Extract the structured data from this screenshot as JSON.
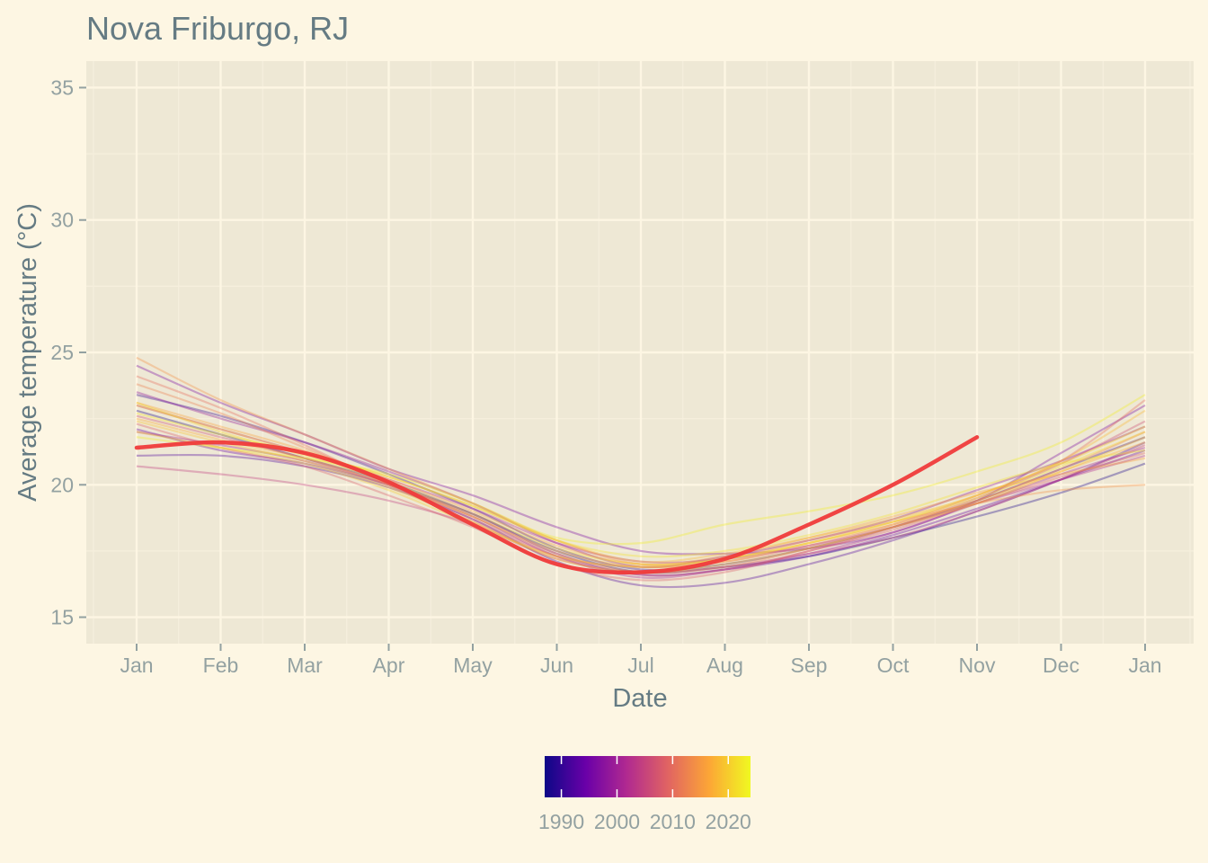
{
  "chart_data": {
    "type": "line",
    "title": "Nova Friburgo, RJ",
    "xlabel": "Date",
    "ylabel": "Average temperature (°C)",
    "ylim": [
      14,
      36
    ],
    "y_ticks": [
      15,
      20,
      25,
      30,
      35
    ],
    "x_ticks": [
      "Jan",
      "Feb",
      "Mar",
      "Apr",
      "May",
      "Jun",
      "Jul",
      "Aug",
      "Sep",
      "Oct",
      "Nov",
      "Dec",
      "Jan"
    ],
    "grid": true,
    "legend": {
      "type": "colorbar",
      "placement": "bottom",
      "ticks": [
        1990,
        2000,
        2010,
        2020
      ],
      "range": [
        1987,
        2024
      ],
      "colors": [
        "#0d0887",
        "#6a00a8",
        "#b12a90",
        "#e16462",
        "#fca636",
        "#f0f921"
      ]
    },
    "highlight_color": "#ef3b3b",
    "x_points": [
      "Jan",
      "Feb",
      "Mar",
      "Apr",
      "May",
      "Jun",
      "Jul",
      "Aug",
      "Sep",
      "Oct",
      "Nov",
      "Dec",
      "Jan"
    ],
    "series": [
      {
        "year": 1988,
        "values": [
          22.8,
          21.9,
          21.0,
          20.1,
          18.9,
          17.5,
          16.7,
          16.9,
          17.3,
          18.0,
          18.8,
          19.7,
          20.8
        ],
        "highlight": false
      },
      {
        "year": 1990,
        "values": [
          23.4,
          22.6,
          21.6,
          20.4,
          19.1,
          17.6,
          16.8,
          17.0,
          17.6,
          18.4,
          19.4,
          20.6,
          21.8
        ],
        "highlight": false
      },
      {
        "year": 1992,
        "values": [
          21.1,
          21.1,
          20.7,
          19.9,
          18.7,
          17.1,
          16.2,
          16.3,
          17.0,
          17.9,
          19.0,
          20.2,
          21.6
        ],
        "highlight": false
      },
      {
        "year": 1994,
        "values": [
          22.1,
          21.3,
          20.8,
          20.0,
          18.9,
          17.4,
          16.6,
          16.8,
          17.3,
          18.1,
          19.1,
          20.2,
          21.3
        ],
        "highlight": false
      },
      {
        "year": 1996,
        "values": [
          24.5,
          23.1,
          21.9,
          20.6,
          19.6,
          18.4,
          17.5,
          17.4,
          17.6,
          18.2,
          19.4,
          21.2,
          23.0
        ],
        "highlight": false
      },
      {
        "year": 1998,
        "values": [
          23.5,
          22.5,
          21.6,
          20.5,
          19.3,
          17.8,
          16.9,
          17.3,
          17.9,
          18.7,
          19.8,
          20.9,
          22.2
        ],
        "highlight": false
      },
      {
        "year": 2000,
        "values": [
          22.0,
          21.5,
          20.9,
          20.0,
          18.8,
          17.3,
          16.5,
          16.8,
          17.4,
          18.2,
          19.3,
          20.4,
          21.4
        ],
        "highlight": false
      },
      {
        "year": 2002,
        "values": [
          23.0,
          22.1,
          21.2,
          20.2,
          19.1,
          17.8,
          17.1,
          17.2,
          17.7,
          18.4,
          19.3,
          20.2,
          21.1
        ],
        "highlight": false
      },
      {
        "year": 2004,
        "values": [
          20.7,
          20.4,
          20.0,
          19.4,
          18.5,
          17.2,
          16.7,
          16.9,
          17.4,
          18.0,
          19.0,
          20.2,
          21.5
        ],
        "highlight": false
      },
      {
        "year": 2006,
        "values": [
          22.6,
          21.8,
          21.0,
          20.0,
          18.7,
          17.3,
          16.6,
          16.8,
          17.5,
          18.4,
          19.5,
          20.8,
          22.4
        ],
        "highlight": false
      },
      {
        "year": 2008,
        "values": [
          22.3,
          21.4,
          20.7,
          19.6,
          18.4,
          17.0,
          16.4,
          16.7,
          17.5,
          18.3,
          19.3,
          20.3,
          21.2
        ],
        "highlight": false
      },
      {
        "year": 2010,
        "values": [
          24.1,
          22.9,
          21.5,
          20.0,
          18.6,
          17.3,
          16.9,
          17.1,
          17.7,
          18.5,
          19.6,
          20.9,
          23.2
        ],
        "highlight": false
      },
      {
        "year": 2012,
        "values": [
          23.8,
          22.7,
          21.4,
          20.1,
          18.8,
          17.4,
          16.7,
          16.9,
          17.6,
          18.4,
          19.4,
          20.6,
          22.0
        ],
        "highlight": false
      },
      {
        "year": 2014,
        "values": [
          24.8,
          23.2,
          21.9,
          20.6,
          19.3,
          17.9,
          17.0,
          17.2,
          17.9,
          18.6,
          19.3,
          19.8,
          20.0
        ],
        "highlight": false
      },
      {
        "year": 2016,
        "values": [
          23.1,
          22.2,
          21.3,
          20.2,
          19.0,
          17.7,
          17.0,
          17.3,
          18.0,
          18.8,
          19.7,
          20.4,
          21.0
        ],
        "highlight": false
      },
      {
        "year": 2017,
        "values": [
          22.5,
          21.7,
          21.0,
          20.0,
          18.8,
          17.5,
          16.9,
          17.1,
          17.8,
          18.5,
          19.4,
          20.5,
          21.6
        ],
        "highlight": false
      },
      {
        "year": 2018,
        "values": [
          23.0,
          22.1,
          21.2,
          20.3,
          19.2,
          17.9,
          17.1,
          17.4,
          18.0,
          18.7,
          19.6,
          20.9,
          22.8
        ],
        "highlight": false
      },
      {
        "year": 2019,
        "values": [
          22.4,
          21.6,
          20.9,
          19.9,
          18.6,
          17.2,
          16.7,
          17.0,
          17.6,
          18.4,
          19.3,
          20.5,
          21.8
        ],
        "highlight": false
      },
      {
        "year": 2020,
        "values": [
          22.0,
          21.4,
          20.8,
          19.8,
          18.5,
          17.3,
          16.9,
          17.2,
          17.8,
          18.6,
          19.6,
          20.8,
          22.2
        ],
        "highlight": false
      },
      {
        "year": 2021,
        "values": [
          23.1,
          22.0,
          21.1,
          20.1,
          18.9,
          17.6,
          17.0,
          17.2,
          17.8,
          18.6,
          19.5,
          20.7,
          22.0
        ],
        "highlight": false
      },
      {
        "year": 2022,
        "values": [
          22.7,
          21.9,
          21.2,
          20.3,
          19.2,
          17.9,
          17.3,
          17.5,
          18.1,
          18.9,
          19.9,
          20.8,
          21.3
        ],
        "highlight": false
      },
      {
        "year": 2023,
        "values": [
          21.8,
          21.4,
          21.0,
          20.4,
          19.3,
          18.0,
          17.8,
          18.5,
          19.0,
          19.6,
          20.5,
          21.6,
          23.4
        ],
        "highlight": false
      },
      {
        "year": 2024,
        "values": [
          21.4,
          21.6,
          21.2,
          20.1,
          18.5,
          17.0,
          16.7,
          17.2,
          18.5,
          20.0,
          21.8
        ],
        "highlight": true
      }
    ]
  }
}
